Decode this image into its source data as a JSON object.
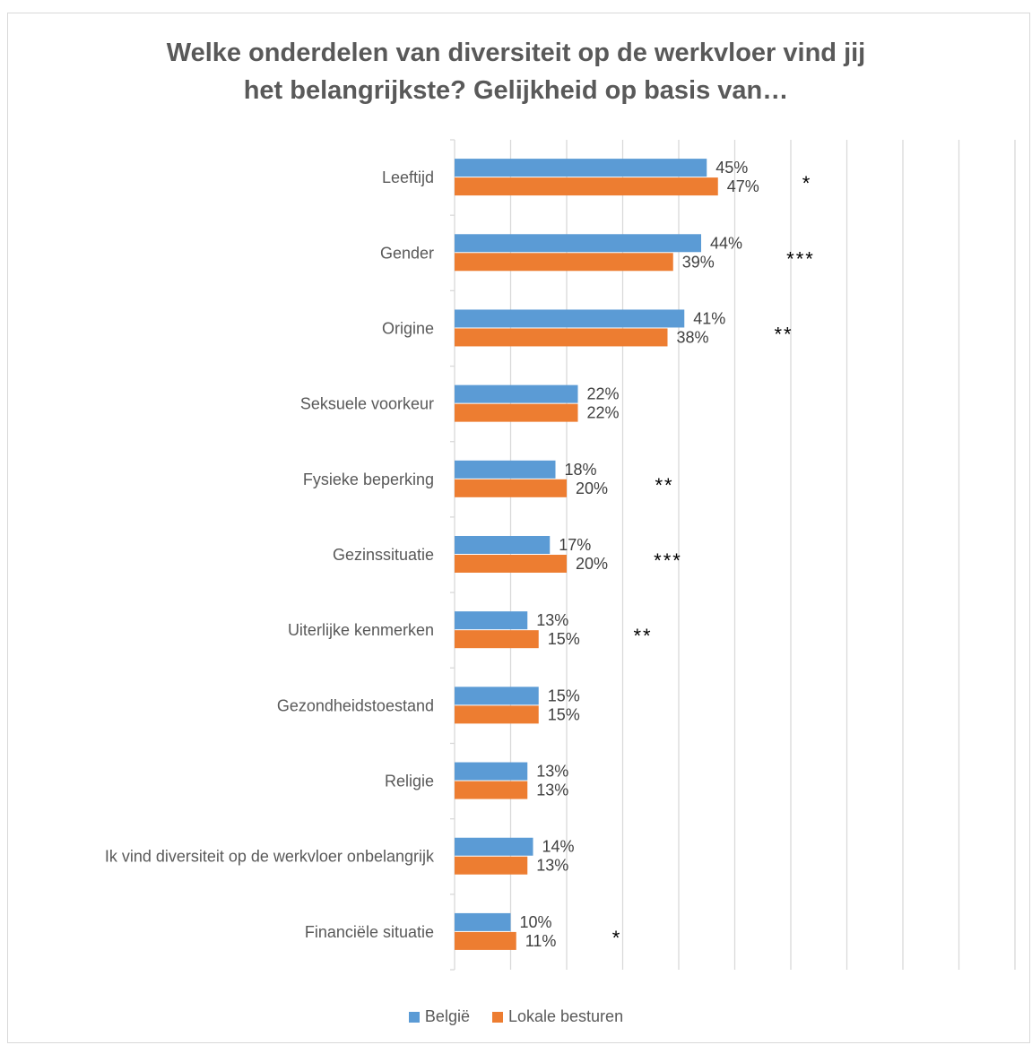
{
  "chart_data": {
    "type": "bar",
    "orientation": "horizontal",
    "title_line1": "Welke onderdelen van diversiteit op de werkvloer vind jij",
    "title_line2": "het belangrijkste? Gelijkheid op basis van…",
    "categories": [
      "Leeftijd",
      "Gender",
      "Origine",
      "Seksuele voorkeur",
      "Fysieke beperking",
      "Gezinssituatie",
      "Uiterlijke kenmerken",
      "Gezondheidstoestand",
      "Religie",
      "Ik vind diversiteit op de werkvloer onbelangrijk",
      "Financiële situatie"
    ],
    "series": [
      {
        "name": "België",
        "color": "#5b9bd5",
        "values": [
          45,
          44,
          41,
          22,
          18,
          17,
          13,
          15,
          13,
          14,
          10
        ],
        "labels": [
          "45%",
          "44%",
          "41%",
          "22%",
          "18%",
          "17%",
          "13%",
          "15%",
          "13%",
          "14%",
          "10%"
        ]
      },
      {
        "name": "Lokale besturen",
        "color": "#ed7d31",
        "values": [
          47,
          39,
          38,
          22,
          20,
          20,
          15,
          15,
          13,
          13,
          11
        ],
        "labels": [
          "47%",
          "39%",
          "38%",
          "22%",
          "20%",
          "20%",
          "15%",
          "15%",
          "13%",
          "13%",
          "11%"
        ]
      }
    ],
    "significance": [
      "*",
      "***",
      "**",
      "",
      "**",
      "***",
      "**",
      "",
      "",
      "",
      "*"
    ],
    "xlim": [
      0,
      100
    ],
    "grid": true,
    "legend_position": "bottom"
  }
}
